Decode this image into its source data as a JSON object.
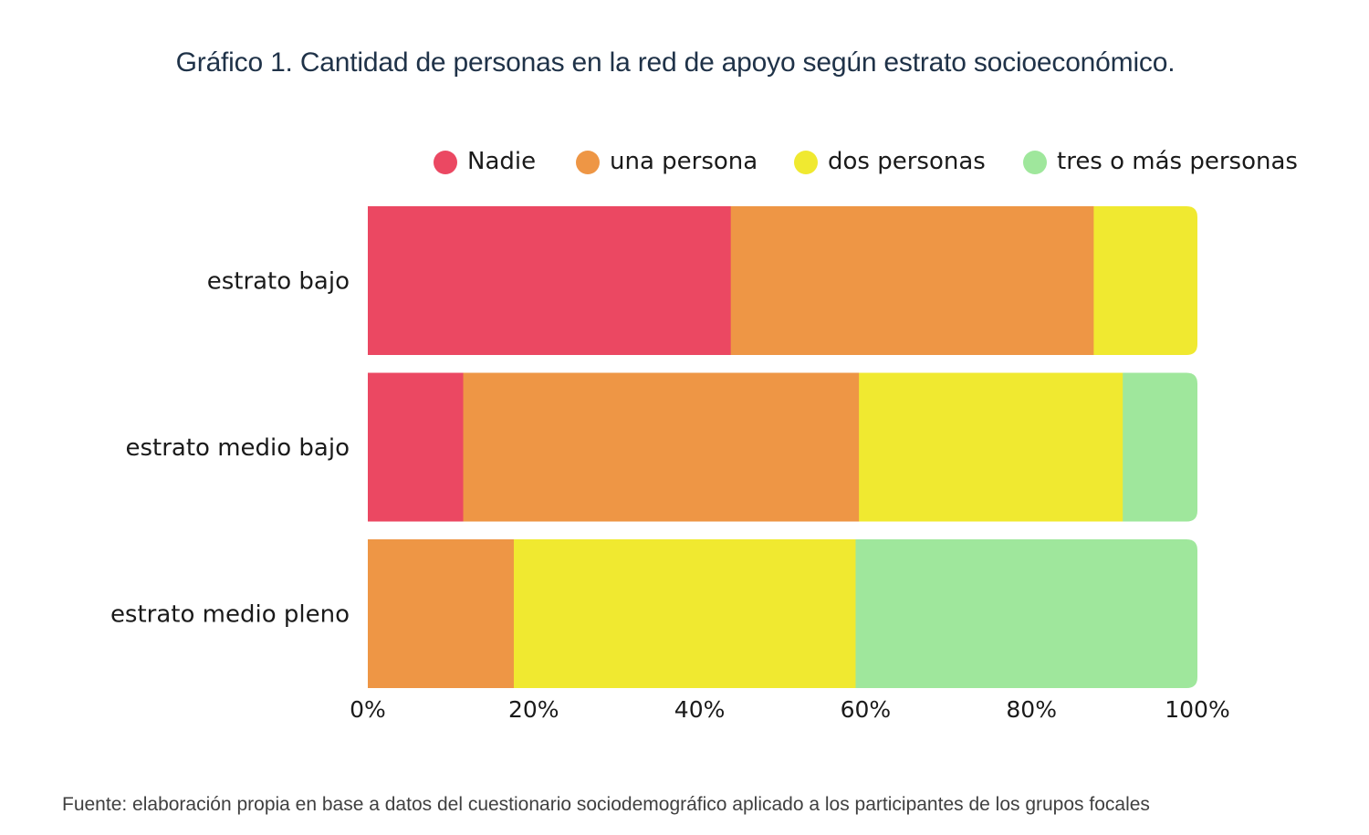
{
  "chart_data": {
    "type": "bar",
    "orientation": "horizontal",
    "stacked": true,
    "title": "Gráfico 1. Cantidad de personas en la red de apoyo según estrato socioeconómico.",
    "source": "Fuente: elaboración propia en base a datos del cuestionario sociodemográfico aplicado a los participantes de los grupos focales",
    "categories": [
      "estrato bajo",
      "estrato medio bajo",
      "estrato medio pleno"
    ],
    "series": [
      {
        "name": "Nadie",
        "color": "#eb4862",
        "values": [
          43.75,
          11.5,
          0
        ]
      },
      {
        "name": "una persona",
        "color": "#ee9645",
        "values": [
          43.75,
          47.7,
          17.6
        ]
      },
      {
        "name": "dos personas",
        "color": "#f0e930",
        "values": [
          12.5,
          31.8,
          41.2
        ]
      },
      {
        "name": "tres o más personas",
        "color": "#9fe79c",
        "values": [
          0,
          9.0,
          41.2
        ]
      }
    ],
    "xlim": [
      0,
      100
    ],
    "xticks": [
      "0%",
      "20%",
      "40%",
      "60%",
      "80%",
      "100%"
    ],
    "xlabel": "",
    "ylabel": "",
    "legend_position": "top-right",
    "grid": false
  }
}
